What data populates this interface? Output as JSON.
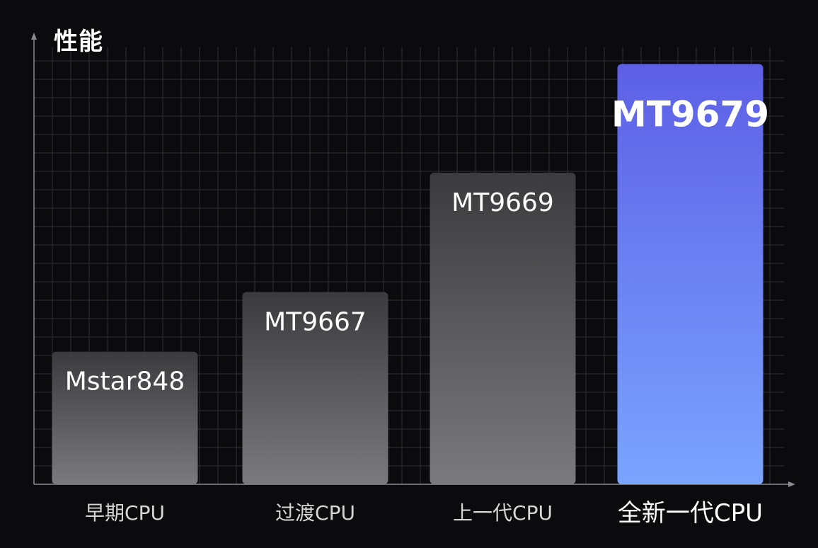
{
  "chart_data": {
    "type": "bar",
    "ylabel": "性能",
    "xlabel": "",
    "categories": [
      "早期CPU",
      "过渡CPU",
      "上一代CPU",
      "全新一代CPU"
    ],
    "series": [
      {
        "bar_labels": [
          "Mstar848",
          "MT9667",
          "MT9669",
          "MT9679"
        ],
        "values": [
          1.0,
          1.45,
          2.35,
          3.17
        ]
      }
    ],
    "ylim": [
      0,
      3.3
    ],
    "grid": true,
    "highlight_index": 3,
    "colors": {
      "background": "#0b0b0d",
      "grid": "#2a2b30",
      "axis": "#8a8a90",
      "bar_top": "#3b3b3e",
      "bar_bottom": "#7a7a7e",
      "highlight_top": "#5d5fe6",
      "highlight_bottom": "#7aa4ff",
      "label_text": "#ffffff",
      "category_text": "#d6d6d6",
      "highlight_category_text": "#ffffff"
    }
  }
}
